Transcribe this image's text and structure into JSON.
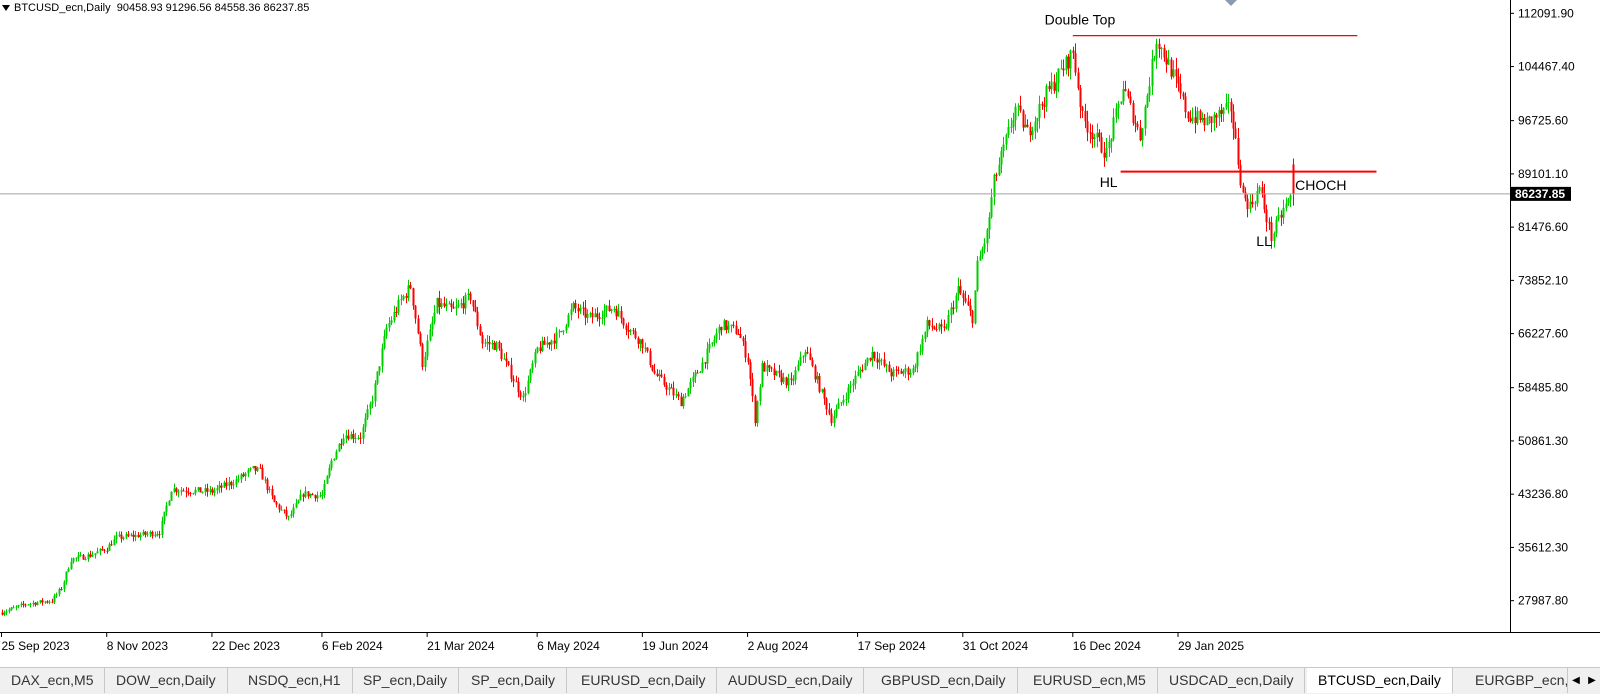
{
  "header": {
    "symbol": "BTCUSD_ecn,Daily",
    "ohlc": "90458.93 91296.56 84558.36 86237.85"
  },
  "chart_data": {
    "type": "candlestick",
    "title": "BTCUSD_ecn,Daily",
    "y_ticks": [
      "112091.90",
      "104467.40",
      "96725.60",
      "89101.10",
      "81476.60",
      "73852.10",
      "66227.60",
      "58485.80",
      "50861.30",
      "43236.80",
      "35612.30",
      "27987.80"
    ],
    "ylim": [
      23500,
      114000
    ],
    "x_ticks": [
      "25 Sep 2023",
      "8 Nov 2023",
      "22 Dec 2023",
      "6 Feb 2024",
      "21 Mar 2024",
      "6 May 2024",
      "19 Jun 2024",
      "2 Aug 2024",
      "17 Sep 2024",
      "31 Oct 2024",
      "16 Dec 2024",
      "29 Jan 2025"
    ],
    "current_price": "86237.85",
    "close_path": [
      [
        "25 Sep 2023",
        26300
      ],
      [
        "5 Oct 2023",
        27500
      ],
      [
        "16 Oct 2023",
        28000
      ],
      [
        "20 Oct 2023",
        29800
      ],
      [
        "24 Oct 2023",
        33900
      ],
      [
        "1 Nov 2023",
        34500
      ],
      [
        "8 Nov 2023",
        35500
      ],
      [
        "12 Nov 2023",
        37000
      ],
      [
        "20 Nov 2023",
        37300
      ],
      [
        "30 Nov 2023",
        37800
      ],
      [
        "5 Dec 2023",
        44000
      ],
      [
        "10 Dec 2023",
        43800
      ],
      [
        "22 Dec 2023",
        43600
      ],
      [
        "1 Jan 2024",
        45200
      ],
      [
        "8 Jan 2024",
        46800
      ],
      [
        "11 Jan 2024",
        46500
      ],
      [
        "17 Jan 2024",
        42000
      ],
      [
        "23 Jan 2024",
        39800
      ],
      [
        "29 Jan 2024",
        43300
      ],
      [
        "6 Feb 2024",
        43000
      ],
      [
        "10 Feb 2024",
        48000
      ],
      [
        "15 Feb 2024",
        51800
      ],
      [
        "22 Feb 2024",
        51500
      ],
      [
        "27 Feb 2024",
        57000
      ],
      [
        "4 Mar 2024",
        67000
      ],
      [
        "10 Mar 2024",
        71000
      ],
      [
        "14 Mar 2024",
        73000
      ],
      [
        "19 Mar 2024",
        62000
      ],
      [
        "25 Mar 2024",
        70500
      ],
      [
        "1 Apr 2024",
        69500
      ],
      [
        "8 Apr 2024",
        71500
      ],
      [
        "13 Apr 2024",
        65000
      ],
      [
        "19 Apr 2024",
        64500
      ],
      [
        "30 Apr 2024",
        57000
      ],
      [
        "6 May 2024",
        64000
      ],
      [
        "15 May 2024",
        66000
      ],
      [
        "21 May 2024",
        70000
      ],
      [
        "28 May 2024",
        68500
      ],
      [
        "7 Jun 2024",
        70000
      ],
      [
        "13 Jun 2024",
        67000
      ],
      [
        "19 Jun 2024",
        64800
      ],
      [
        "24 Jun 2024",
        60500
      ],
      [
        "5 Jul 2024",
        56500
      ],
      [
        "14 Jul 2024",
        62000
      ],
      [
        "22 Jul 2024",
        67500
      ],
      [
        "29 Jul 2024",
        66500
      ],
      [
        "2 Aug 2024",
        62500
      ],
      [
        "5 Aug 2024",
        54000
      ],
      [
        "8 Aug 2024",
        61500
      ],
      [
        "20 Aug 2024",
        59000
      ],
      [
        "26 Aug 2024",
        64000
      ],
      [
        "6 Sep 2024",
        54000
      ],
      [
        "17 Sep 2024",
        60500
      ],
      [
        "23 Sep 2024",
        63500
      ],
      [
        "1 Oct 2024",
        60500
      ],
      [
        "10 Oct 2024",
        61000
      ],
      [
        "16 Oct 2024",
        67500
      ],
      [
        "23 Oct 2024",
        66500
      ],
      [
        "29 Oct 2024",
        72500
      ],
      [
        "4 Nov 2024",
        68500
      ],
      [
        "6 Nov 2024",
        76000
      ],
      [
        "10 Nov 2024",
        80500
      ],
      [
        "13 Nov 2024",
        88000
      ],
      [
        "22 Nov 2024",
        98500
      ],
      [
        "27 Nov 2024",
        95000
      ],
      [
        "5 Dec 2024",
        100500
      ],
      [
        "16 Dec 2024",
        106500
      ],
      [
        "20 Dec 2024",
        97000
      ],
      [
        "30 Dec 2024",
        92000
      ],
      [
        "6 Jan 2025",
        101500
      ],
      [
        "13 Jan 2025",
        94500
      ],
      [
        "20 Jan 2025",
        108500
      ],
      [
        "26 Jan 2025",
        104000
      ],
      [
        "2 Feb 2025",
        97500
      ],
      [
        "10 Feb 2025",
        96500
      ],
      [
        "20 Feb 2025",
        98500
      ],
      [
        "25 Feb 2025",
        86000
      ],
      [
        "28 Feb 2025",
        84500
      ],
      [
        "4 Mar 2025",
        87000
      ],
      [
        "9 Mar 2025",
        80000
      ],
      [
        "14 Mar 2025",
        84000
      ],
      [
        "18 Mar 2025",
        86237.85
      ]
    ],
    "annotations": [
      {
        "text": "Double Top",
        "date": "19 Dec 2024",
        "price": 110500,
        "anchor": "middle"
      },
      {
        "text": "HL",
        "date": "31 Dec 2024",
        "price": 87200,
        "anchor": "middle"
      },
      {
        "text": "CHOCH",
        "date": "19 Mar 2025",
        "price": 86800,
        "anchor": "start"
      },
      {
        "text": "LL",
        "date": "6 Mar 2025",
        "price": 78800,
        "anchor": "middle"
      }
    ],
    "levels": [
      {
        "name": "double-top-line",
        "price": 108900,
        "from": "16 Dec 2024",
        "to": "14 Apr 2025",
        "color": "#ff0000"
      },
      {
        "name": "choch-line",
        "price": 89420,
        "from": "5 Jan 2025",
        "to": "22 Apr 2025",
        "color": "#ff0000"
      }
    ],
    "colors": {
      "bull": "#00cc00",
      "bear": "#ff0000",
      "axis": "#000000",
      "price_line": "#a0a0a0"
    }
  },
  "tabs": [
    {
      "label": "DAX_ecn,M5"
    },
    {
      "label": "DOW_ecn,Daily"
    },
    {
      "label": "NSDQ_ecn,H1"
    },
    {
      "label": "SP_ecn,Daily"
    },
    {
      "label": "SP_ecn,Daily"
    },
    {
      "label": "EURUSD_ecn,Daily"
    },
    {
      "label": "AUDUSD_ecn,Daily"
    },
    {
      "label": "GBPUSD_ecn,Daily"
    },
    {
      "label": "EURUSD_ecn,M5"
    },
    {
      "label": "USDCAD_ecn,Daily"
    },
    {
      "label": "BTCUSD_ecn,Daily",
      "active": true
    },
    {
      "label": "EURGBP_ecn,Daily"
    }
  ],
  "tab_nav": {
    "left": "◀",
    "right": "▶"
  }
}
